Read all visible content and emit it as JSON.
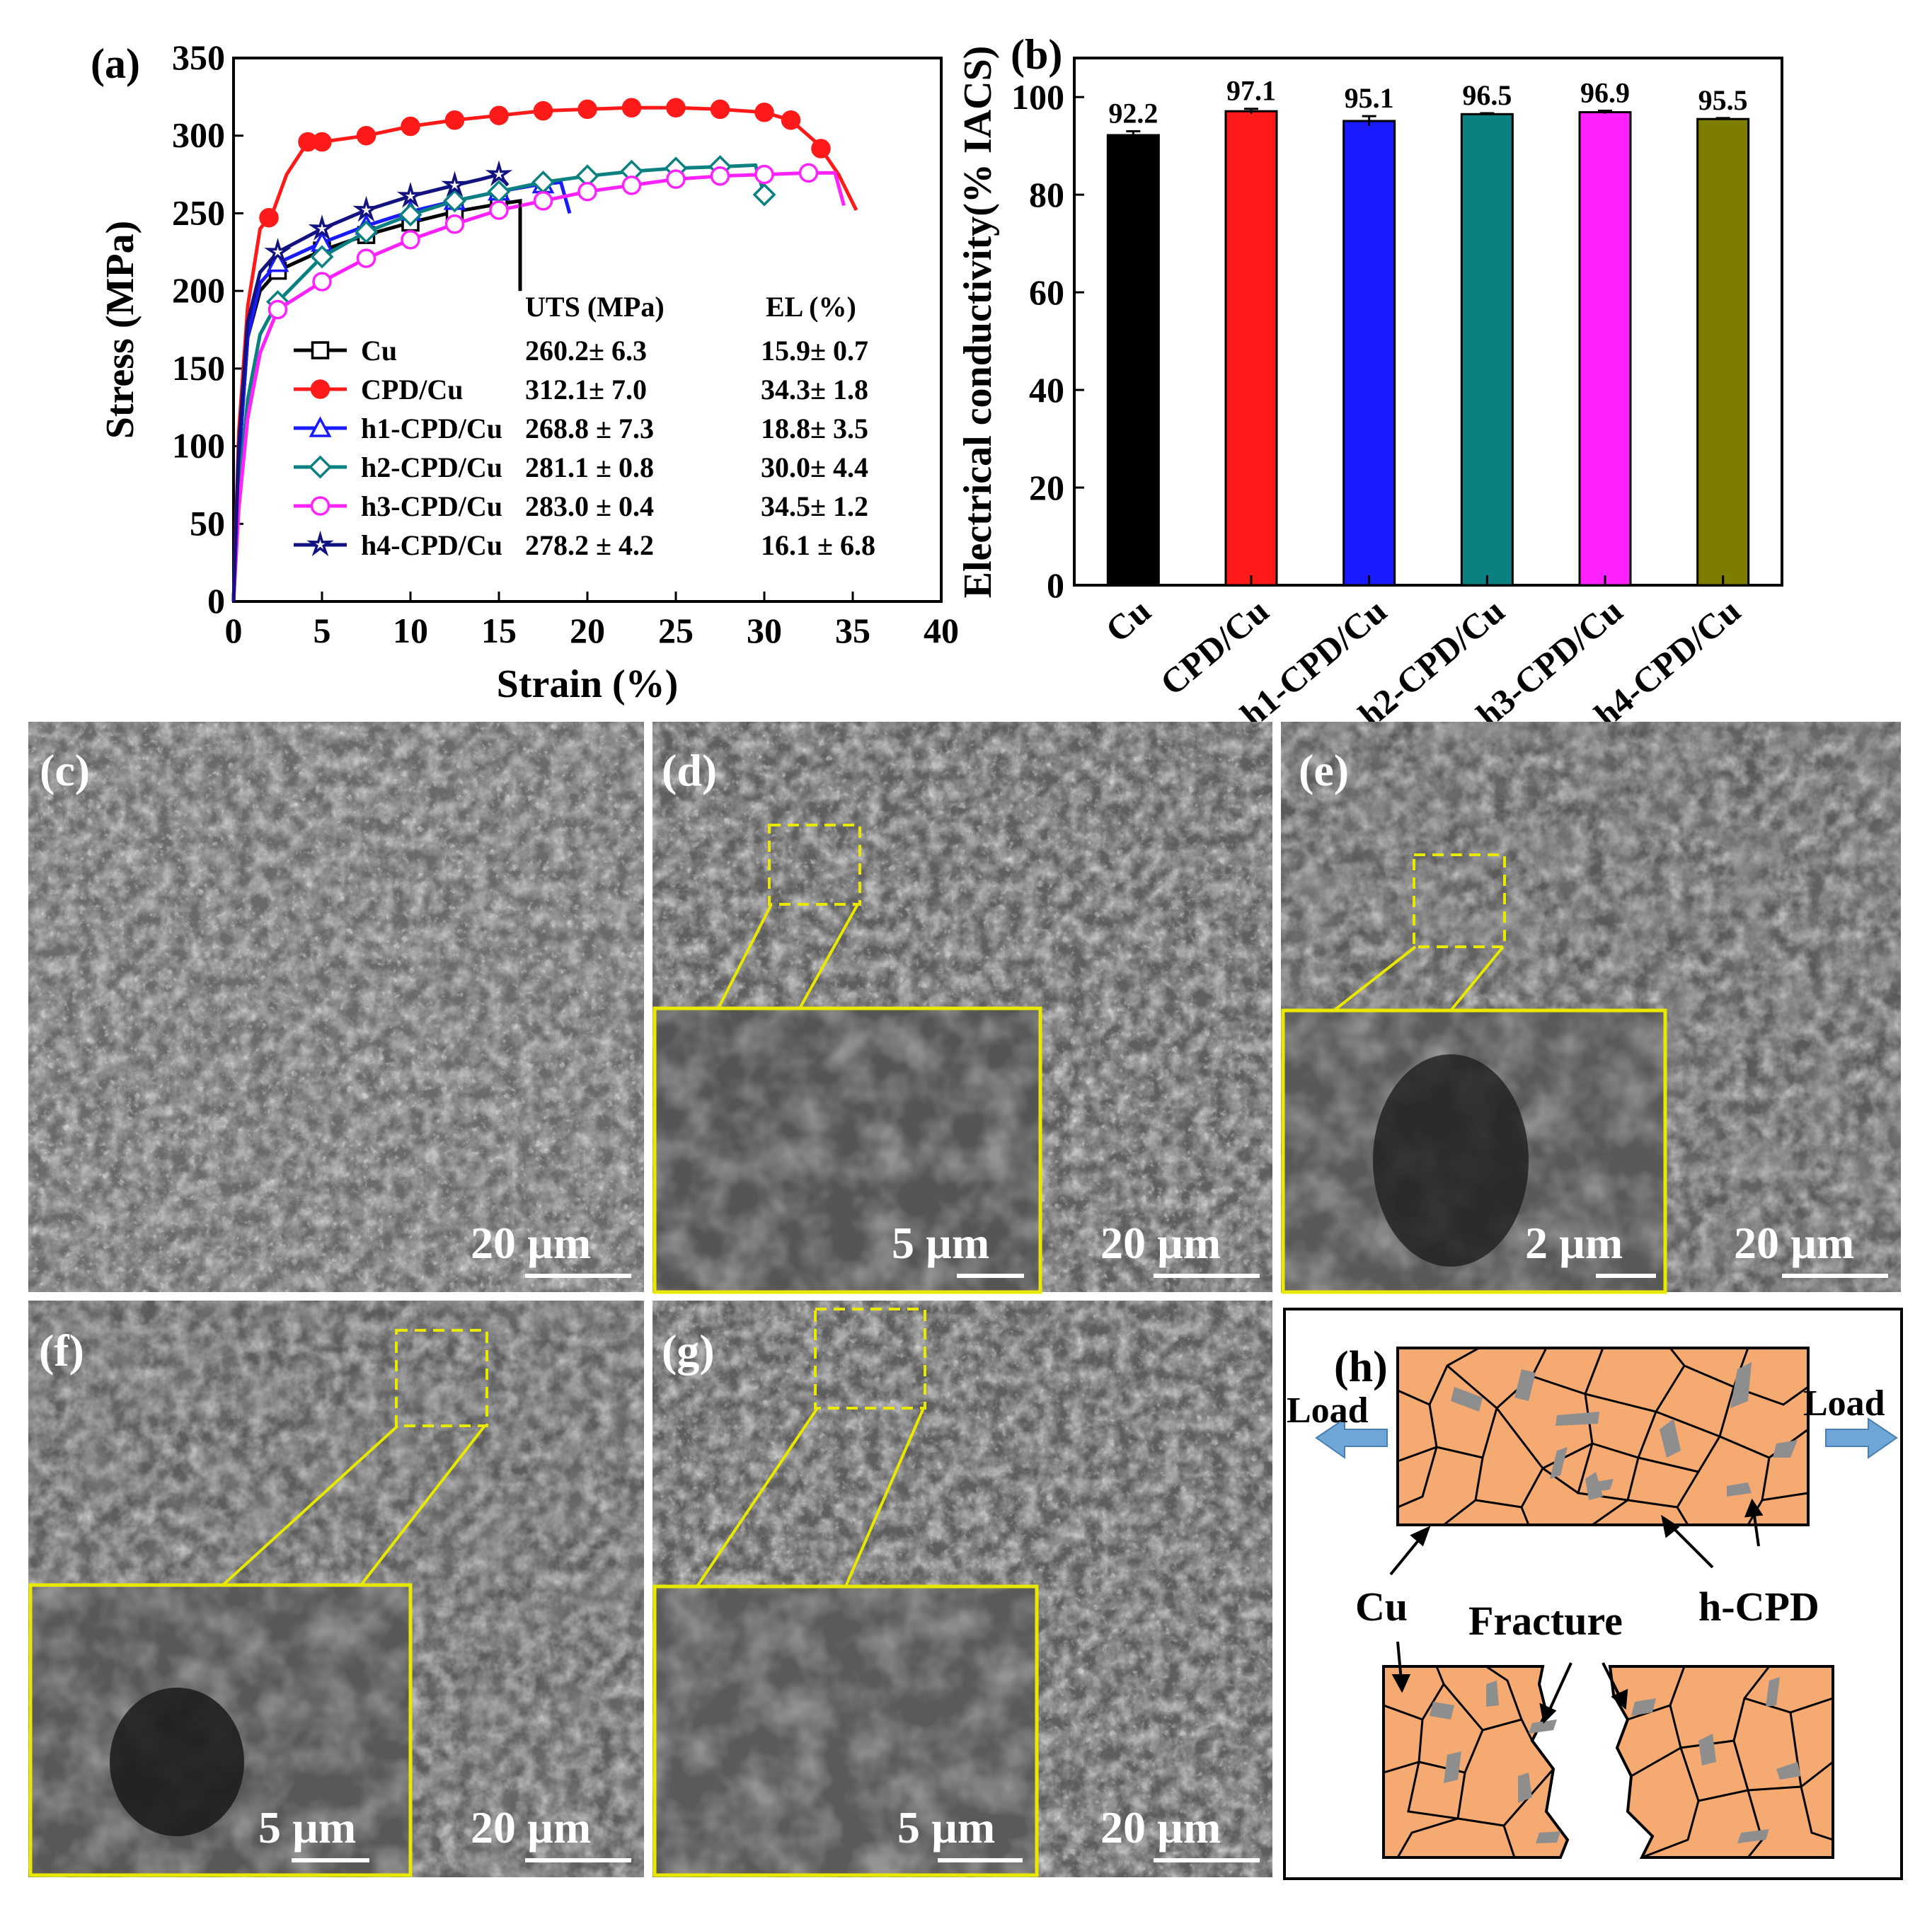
{
  "colors": {
    "Cu": "#000000",
    "CPD/Cu": "#ff1a1a",
    "h1-CPD/Cu": "#1a1aff",
    "h2-CPD/Cu": "#0b8080",
    "h3-CPD/Cu": "#ff22ff",
    "h4-CPD/Cu": "#121280",
    "bar_h4": "#7d7d00",
    "highlight": "#e8e800",
    "grain": "#f5aa72",
    "particle": "#8e8e8e",
    "arrow": "#6ea6d8"
  },
  "panel_a": {
    "label": "(a)",
    "legend_header_uts": "UTS (MPa)",
    "legend_header_el": "EL (%)",
    "legend": [
      {
        "name": "Cu",
        "uts": "260.2± 6.3",
        "el": "15.9± 0.7",
        "marker": "square"
      },
      {
        "name": "CPD/Cu",
        "uts": "312.1±  7.0",
        "el": "34.3±  1.8",
        "marker": "circle-filled"
      },
      {
        "name": "h1-CPD/Cu",
        "uts": "268.8 ± 7.3",
        "el": "18.8± 3.5",
        "marker": "triangle"
      },
      {
        "name": "h2-CPD/Cu",
        "uts": "281.1 ±  0.8",
        "el": "30.0± 4.4",
        "marker": "diamond"
      },
      {
        "name": "h3-CPD/Cu",
        "uts": "283.0 ± 0.4",
        "el": "34.5± 1.2",
        "marker": "circle"
      },
      {
        "name": "h4-CPD/Cu",
        "uts": "278.2 ± 4.2",
        "el": "16.1 ± 6.8",
        "marker": "star"
      }
    ]
  },
  "panel_b": {
    "label": "(b)"
  },
  "chart_data": [
    {
      "type": "line",
      "xlabel": "Strain (%)",
      "ylabel": "Stress (MPa)",
      "xlim": [
        0,
        40
      ],
      "ylim": [
        0,
        350
      ],
      "xticks": [
        "0",
        "5",
        "10",
        "15",
        "20",
        "25",
        "30",
        "35",
        "40"
      ],
      "yticks": [
        "0",
        "50",
        "100",
        "150",
        "200",
        "250",
        "300",
        "350"
      ],
      "series": [
        {
          "name": "Cu",
          "points": [
            [
              0,
              0
            ],
            [
              0.3,
              90
            ],
            [
              0.8,
              170
            ],
            [
              1.5,
              200
            ],
            [
              2.5,
              213
            ],
            [
              5,
              226
            ],
            [
              7.5,
              236
            ],
            [
              10,
              244
            ],
            [
              12.5,
              251
            ],
            [
              15,
              256
            ],
            [
              16.2,
              258
            ],
            [
              16.2,
              200
            ]
          ]
        },
        {
          "name": "CPD/Cu",
          "points": [
            [
              0,
              0
            ],
            [
              0.3,
              110
            ],
            [
              0.8,
              190
            ],
            [
              1.5,
              240
            ],
            [
              2.2,
              250
            ],
            [
              3,
              275
            ],
            [
              4.2,
              296
            ],
            [
              5,
              296
            ],
            [
              7.5,
              300
            ],
            [
              10,
              306
            ],
            [
              12.5,
              310
            ],
            [
              15,
              313
            ],
            [
              17.5,
              316
            ],
            [
              20,
              317
            ],
            [
              22.5,
              318
            ],
            [
              25,
              318
            ],
            [
              27.5,
              317
            ],
            [
              30,
              315
            ],
            [
              31.5,
              310
            ],
            [
              33,
              295
            ],
            [
              34.2,
              275
            ],
            [
              35.2,
              252
            ]
          ]
        },
        {
          "name": "h1-CPD/Cu",
          "points": [
            [
              0,
              0
            ],
            [
              0.3,
              90
            ],
            [
              0.8,
              170
            ],
            [
              1.5,
              205
            ],
            [
              2.5,
              218
            ],
            [
              5,
              231
            ],
            [
              7.5,
              242
            ],
            [
              10,
              251
            ],
            [
              12.5,
              258
            ],
            [
              15,
              264
            ],
            [
              17,
              268
            ],
            [
              18.5,
              270
            ],
            [
              19,
              250
            ]
          ]
        },
        {
          "name": "h2-CPD/Cu",
          "points": [
            [
              0,
              0
            ],
            [
              0.3,
              70
            ],
            [
              0.8,
              130
            ],
            [
              1.5,
              172
            ],
            [
              2.5,
              193
            ],
            [
              5,
              222
            ],
            [
              7.5,
              238
            ],
            [
              10,
              249
            ],
            [
              12.5,
              258
            ],
            [
              15,
              264
            ],
            [
              17.5,
              270
            ],
            [
              20,
              274
            ],
            [
              22.5,
              277
            ],
            [
              25,
              279
            ],
            [
              27.5,
              280
            ],
            [
              29.5,
              281
            ],
            [
              30,
              262
            ]
          ]
        },
        {
          "name": "h3-CPD/Cu",
          "points": [
            [
              0,
              0
            ],
            [
              0.3,
              60
            ],
            [
              0.8,
              118
            ],
            [
              1.5,
              160
            ],
            [
              2.5,
              188
            ],
            [
              5,
              206
            ],
            [
              7.5,
              221
            ],
            [
              10,
              233
            ],
            [
              12.5,
              243
            ],
            [
              15,
              252
            ],
            [
              17.5,
              258
            ],
            [
              20,
              264
            ],
            [
              22.5,
              268
            ],
            [
              25,
              272
            ],
            [
              27.5,
              274
            ],
            [
              30,
              275
            ],
            [
              32.5,
              276
            ],
            [
              34,
              276
            ],
            [
              34.5,
              255
            ]
          ]
        },
        {
          "name": "h4-CPD/Cu",
          "points": [
            [
              0,
              0
            ],
            [
              0.3,
              100
            ],
            [
              0.8,
              180
            ],
            [
              1.5,
              212
            ],
            [
              2.5,
              225
            ],
            [
              5,
              240
            ],
            [
              7.5,
              252
            ],
            [
              10,
              261
            ],
            [
              12.5,
              268
            ],
            [
              14,
              272
            ],
            [
              15,
              275
            ],
            [
              15.5,
              268
            ]
          ]
        }
      ],
      "marker_x": {
        "Cu": [
          2.5,
          5,
          7.5,
          10,
          12.5,
          15
        ],
        "CPD/Cu": [
          2,
          4.2,
          5,
          7.5,
          10,
          12.5,
          15,
          17.5,
          20,
          22.5,
          25,
          27.5,
          30,
          31.5,
          33.2
        ],
        "h1-CPD/Cu": [
          2.5,
          5,
          7.5,
          10,
          12.5,
          15,
          17.5
        ],
        "h2-CPD/Cu": [
          2.5,
          5,
          7.5,
          10,
          12.5,
          15,
          17.5,
          20,
          22.5,
          25,
          27.5,
          30
        ],
        "h3-CPD/Cu": [
          2.5,
          5,
          7.5,
          10,
          12.5,
          15,
          17.5,
          20,
          22.5,
          25,
          27.5,
          30,
          32.5
        ],
        "h4-CPD/Cu": [
          2.5,
          5,
          7.5,
          10,
          12.5,
          15
        ]
      }
    },
    {
      "type": "bar",
      "ylabel": "Electrical conductivity(% IACS)",
      "ylim": [
        0,
        108
      ],
      "yticks": [
        "0",
        "20",
        "40",
        "60",
        "80",
        "100"
      ],
      "categories": [
        "Cu",
        "CPD/Cu",
        "h1-CPD/Cu",
        "h2-CPD/Cu",
        "h3-CPD/Cu",
        "h4-CPD/Cu"
      ],
      "values": [
        92.2,
        97.1,
        95.1,
        96.5,
        96.9,
        95.5
      ],
      "errors": [
        0.8,
        0.5,
        1.0,
        0.2,
        0.3,
        0.2
      ],
      "value_labels": [
        "92.2",
        "97.1",
        "95.1",
        "96.5",
        "96.9",
        "95.5"
      ]
    }
  ],
  "sem": {
    "c": {
      "label": "(c)",
      "scale": "20 µm"
    },
    "d": {
      "label": "(d)",
      "scale": "20 µm",
      "inset_scale": "5 µm"
    },
    "e": {
      "label": "(e)",
      "scale": "20 µm",
      "inset_scale": "2 µm"
    },
    "f": {
      "label": "(f)",
      "scale": "20 µm",
      "inset_scale": "5 µm"
    },
    "g": {
      "label": "(g)",
      "scale": "20 µm",
      "inset_scale": "5 µm"
    }
  },
  "panel_h": {
    "label": "(h)",
    "load_left": "Load",
    "load_right": "Load",
    "cu": "Cu",
    "fracture": "Fracture",
    "hcpd": "h-CPD"
  }
}
